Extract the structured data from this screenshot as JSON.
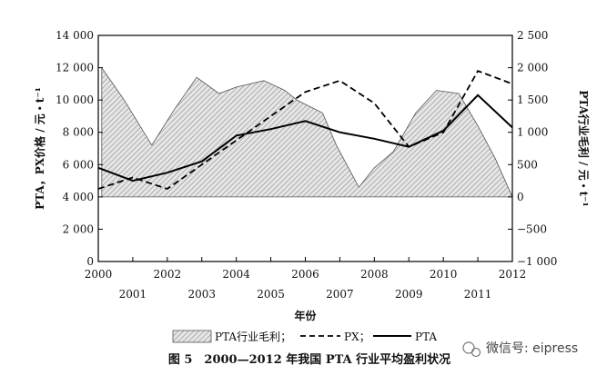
{
  "chart_data": {
    "type": "line",
    "x_label": "年份",
    "x_ticks_top": [
      "2000",
      "2002",
      "2004",
      "2006",
      "2008",
      "2010",
      "2012"
    ],
    "x_ticks_bottom": [
      "2001",
      "2003",
      "2005",
      "2007",
      "2009",
      "2011"
    ],
    "x_range": [
      2000,
      2012
    ],
    "y_left": {
      "label": "PTA，PX价格 / 元・t⁻¹",
      "range": [
        0,
        14000
      ],
      "ticks": [
        0,
        2000,
        4000,
        6000,
        8000,
        10000,
        12000,
        14000
      ],
      "tick_labels": [
        "0",
        "2 000",
        "4 000",
        "6 000",
        "8 000",
        "10 000",
        "12 000",
        "14 000"
      ]
    },
    "y_right": {
      "label": "PTA行业毛利 / 元・t⁻¹",
      "range": [
        -1000,
        2500
      ],
      "ticks": [
        -1000,
        -500,
        0,
        500,
        1000,
        1500,
        2000,
        2500
      ],
      "tick_labels": [
        "−1 000",
        "−500",
        "0",
        "500",
        "1 000",
        "1 500",
        "2 000",
        "2 500"
      ]
    },
    "series": [
      {
        "name": "PTA行业毛利",
        "kind": "area",
        "axis": "right",
        "x": [
          2000.1,
          2000.75,
          2001.55,
          2002.2,
          2002.85,
          2003.5,
          2004.0,
          2004.8,
          2005.4,
          2005.75,
          2006.5,
          2006.9,
          2007.55,
          2008.0,
          2008.55,
          2009.2,
          2009.8,
          2010.45,
          2011.0,
          2011.5,
          2012.0
        ],
        "y": [
          2000,
          1500,
          800,
          1350,
          1850,
          1600,
          1700,
          1800,
          1650,
          1500,
          1300,
          800,
          150,
          450,
          700,
          1300,
          1650,
          1600,
          1100,
          600,
          0
        ]
      },
      {
        "name": "PX",
        "kind": "line",
        "style": "dashed",
        "axis": "left",
        "x": [
          2000,
          2001,
          2002,
          2003,
          2004,
          2005,
          2006,
          2007,
          2008,
          2009,
          2010,
          2011,
          2012
        ],
        "y": [
          4500,
          5200,
          4500,
          6000,
          7500,
          9000,
          10500,
          11200,
          9800,
          7100,
          8000,
          11800,
          11000
        ]
      },
      {
        "name": "PTA",
        "kind": "line",
        "style": "solid",
        "axis": "left",
        "x": [
          2000,
          2001,
          2002,
          2003,
          2004,
          2005,
          2006,
          2007,
          2008,
          2009,
          2010,
          2011,
          2012
        ],
        "y": [
          5800,
          5000,
          5500,
          6200,
          7800,
          8200,
          8700,
          8000,
          7600,
          7100,
          8100,
          10300,
          8300
        ]
      }
    ],
    "legend": {
      "placement": "bottom",
      "entries": [
        "PTA行业毛利；",
        "PX；",
        "PTA"
      ]
    },
    "caption": "图 5　2000—2012 年我国 PTA 行业平均盈利状况",
    "watermark": "微信号: eipress"
  }
}
